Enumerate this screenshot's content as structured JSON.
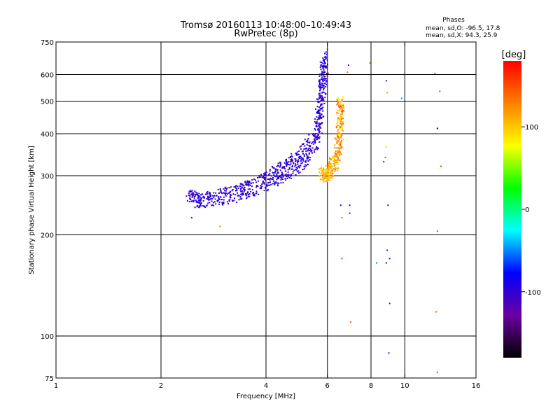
{
  "chart_data": {
    "type": "scatter",
    "title": "Tromsø 20160113 10:48:00–10:49:43",
    "subtitle": "RwPretec (8p)",
    "xlabel": "Frequency [MHz]",
    "ylabel": "Stationary phase Virtual Height [km]",
    "xscale": "log",
    "yscale": "log",
    "xlim": [
      1,
      16
    ],
    "ylim": [
      75,
      750
    ],
    "xticks": [
      1,
      2,
      4,
      6,
      8,
      10,
      16
    ],
    "xtick_labels": [
      "1",
      "2",
      "4",
      "6",
      "8",
      "10",
      "16"
    ],
    "xgrid": [
      2,
      4,
      6,
      8,
      10
    ],
    "yticks": [
      75,
      100,
      200,
      300,
      400,
      500,
      600,
      750
    ],
    "ytick_labels": [
      "75",
      "100",
      "200",
      "300",
      "400",
      "500",
      "600",
      "750"
    ],
    "ygrid": [
      100,
      200,
      300,
      400,
      500,
      600
    ],
    "grid": true,
    "legend": {
      "title": "Phases",
      "lines": [
        "mean, sd,O: -96.5, 17.8",
        "mean, sd,X: 94.3, 25.9"
      ],
      "placement": "top-right"
    },
    "colorbar": {
      "label": "[deg]",
      "range": [
        -180,
        180
      ],
      "ticks": [
        100,
        0,
        -100
      ],
      "tick_labels": [
        "100",
        "0",
        "-100"
      ],
      "colormap": [
        "#000000",
        "#6a00a0",
        "#0000ff",
        "#00ffff",
        "#00ff00",
        "#ffff00",
        "#ff8000",
        "#ff0000"
      ]
    },
    "series": [
      {
        "name": "O-mode trace (blue)",
        "phase": -100,
        "points": [
          [
            2.4,
            262
          ],
          [
            2.5,
            250
          ],
          [
            2.6,
            248
          ],
          [
            2.8,
            250
          ],
          [
            3.0,
            255
          ],
          [
            3.2,
            258
          ],
          [
            3.4,
            262
          ],
          [
            3.6,
            268
          ],
          [
            3.8,
            275
          ],
          [
            4.0,
            282
          ],
          [
            4.2,
            290
          ],
          [
            4.4,
            298
          ],
          [
            4.6,
            306
          ],
          [
            4.8,
            315
          ],
          [
            5.0,
            325
          ],
          [
            5.2,
            338
          ],
          [
            5.4,
            355
          ],
          [
            5.55,
            378
          ],
          [
            5.65,
            410
          ],
          [
            5.72,
            450
          ],
          [
            5.78,
            500
          ],
          [
            5.82,
            550
          ],
          [
            5.86,
            600
          ],
          [
            5.9,
            640
          ],
          [
            5.75,
            655
          ],
          [
            5.85,
            660
          ]
        ]
      },
      {
        "name": "X-mode trace (yellow/orange)",
        "phase": 100,
        "points": [
          [
            5.8,
            300
          ],
          [
            5.9,
            302
          ],
          [
            6.0,
            305
          ],
          [
            6.1,
            310
          ],
          [
            6.2,
            318
          ],
          [
            6.3,
            330
          ],
          [
            6.4,
            345
          ],
          [
            6.45,
            370
          ],
          [
            6.5,
            400
          ],
          [
            6.55,
            440
          ],
          [
            6.55,
            480
          ],
          [
            6.5,
            500
          ]
        ]
      },
      {
        "name": "scattered points",
        "points": [
          [
            2.45,
            225,
            -120
          ],
          [
            2.95,
            212,
            130
          ],
          [
            6.55,
            245,
            -100
          ],
          [
            6.95,
            245,
            -110
          ],
          [
            6.95,
            232,
            -110
          ],
          [
            6.6,
            225,
            140
          ],
          [
            6.6,
            170,
            160
          ],
          [
            7.0,
            110,
            150
          ],
          [
            6.9,
            640,
            -110
          ],
          [
            6.85,
            610,
            130
          ],
          [
            7.95,
            650,
            140
          ],
          [
            8.85,
            575,
            -110
          ],
          [
            8.9,
            530,
            120
          ],
          [
            9.8,
            510,
            -50
          ],
          [
            12.2,
            605,
            150
          ],
          [
            12.6,
            535,
            160
          ],
          [
            12.4,
            415,
            -170
          ],
          [
            12.7,
            320,
            160
          ],
          [
            8.85,
            365,
            100
          ],
          [
            8.8,
            340,
            150
          ],
          [
            8.7,
            330,
            -110
          ],
          [
            8.95,
            245,
            -110
          ],
          [
            12.4,
            205,
            -50
          ],
          [
            8.9,
            180,
            -110
          ],
          [
            9.05,
            170,
            -110
          ],
          [
            8.85,
            165,
            -110
          ],
          [
            8.3,
            165,
            -50
          ],
          [
            9.05,
            125,
            -70
          ],
          [
            12.3,
            118,
            150
          ],
          [
            9.0,
            89,
            -70
          ],
          [
            12.4,
            78,
            -50
          ]
        ]
      }
    ]
  }
}
